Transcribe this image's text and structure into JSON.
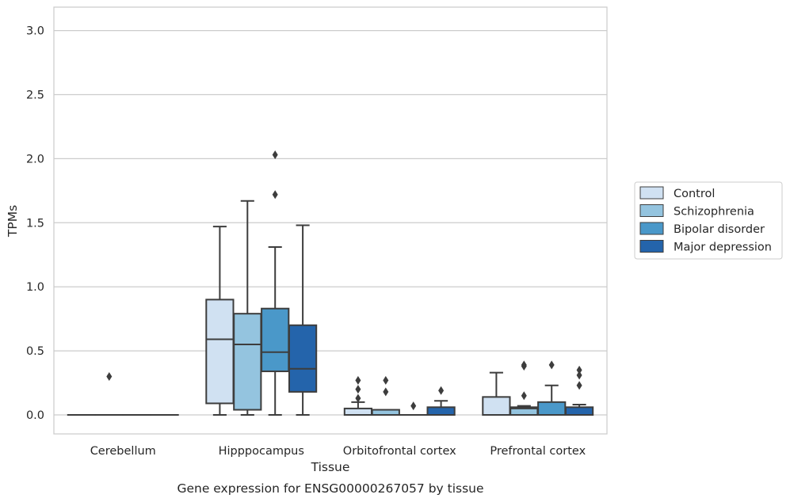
{
  "chart_data": {
    "type": "box",
    "caption": "Gene expression for ENSG00000267057 by tissue",
    "xlabel": "Tissue",
    "ylabel": "TPMs",
    "ylim": [
      -0.15,
      3.2
    ],
    "yticks": [
      0.0,
      0.5,
      1.0,
      1.5,
      2.0,
      2.5,
      3.0
    ],
    "ytick_labels": [
      "0.0",
      "0.5",
      "1.0",
      "1.5",
      "2.0",
      "2.5",
      "3.0"
    ],
    "grid": true,
    "legend_position": "right",
    "categories": [
      "Cerebellum",
      "Hipppocampus",
      "Orbitofrontal cortex",
      "Prefrontal cortex"
    ],
    "series": [
      {
        "name": "Control",
        "color": "#d0e1f2",
        "boxes": [
          {
            "category": "Cerebellum",
            "whisker_low": 0.0,
            "q1": 0.0,
            "median": 0.0,
            "q3": 0.0,
            "whisker_high": 0.0,
            "outliers": []
          },
          {
            "category": "Hipppocampus",
            "whisker_low": 0.0,
            "q1": 0.09,
            "median": 0.59,
            "q3": 0.9,
            "whisker_high": 1.47,
            "outliers": []
          },
          {
            "category": "Orbitofrontal cortex",
            "whisker_low": 0.0,
            "q1": 0.0,
            "median": 0.0,
            "q3": 0.05,
            "whisker_high": 0.1,
            "outliers": [
              0.13,
              0.2,
              0.27
            ]
          },
          {
            "category": "Prefrontal cortex",
            "whisker_low": 0.0,
            "q1": 0.0,
            "median": 0.0,
            "q3": 0.14,
            "whisker_high": 0.33,
            "outliers": []
          }
        ]
      },
      {
        "name": "Schizophrenia",
        "color": "#94c4df",
        "boxes": [
          {
            "category": "Cerebellum",
            "whisker_low": 0.0,
            "q1": 0.0,
            "median": 0.0,
            "q3": 0.0,
            "whisker_high": 0.0,
            "outliers": [
              0.3
            ]
          },
          {
            "category": "Hipppocampus",
            "whisker_low": 0.0,
            "q1": 0.04,
            "median": 0.55,
            "q3": 0.79,
            "whisker_high": 1.67,
            "outliers": []
          },
          {
            "category": "Orbitofrontal cortex",
            "whisker_low": 0.0,
            "q1": 0.0,
            "median": 0.0,
            "q3": 0.04,
            "whisker_high": 0.04,
            "outliers": [
              0.18,
              0.27
            ]
          },
          {
            "category": "Prefrontal cortex",
            "whisker_low": 0.0,
            "q1": 0.0,
            "median": 0.05,
            "q3": 0.06,
            "whisker_high": 0.07,
            "outliers": [
              0.15,
              0.38,
              0.39
            ]
          }
        ]
      },
      {
        "name": "Bipolar disorder",
        "color": "#4a98c9",
        "boxes": [
          {
            "category": "Cerebellum",
            "whisker_low": 0.0,
            "q1": 0.0,
            "median": 0.0,
            "q3": 0.0,
            "whisker_high": 0.0,
            "outliers": []
          },
          {
            "category": "Hipppocampus",
            "whisker_low": 0.0,
            "q1": 0.34,
            "median": 0.49,
            "q3": 0.83,
            "whisker_high": 1.31,
            "outliers": [
              1.72,
              2.03
            ]
          },
          {
            "category": "Orbitofrontal cortex",
            "whisker_low": 0.0,
            "q1": 0.0,
            "median": 0.0,
            "q3": 0.0,
            "whisker_high": 0.0,
            "outliers": [
              0.07
            ]
          },
          {
            "category": "Prefrontal cortex",
            "whisker_low": 0.0,
            "q1": 0.0,
            "median": 0.0,
            "q3": 0.1,
            "whisker_high": 0.23,
            "outliers": [
              0.39
            ]
          }
        ]
      },
      {
        "name": "Major depression",
        "color": "#2464ab",
        "boxes": [
          {
            "category": "Cerebellum",
            "whisker_low": 0.0,
            "q1": 0.0,
            "median": 0.0,
            "q3": 0.0,
            "whisker_high": 0.0,
            "outliers": []
          },
          {
            "category": "Hipppocampus",
            "whisker_low": 0.0,
            "q1": 0.18,
            "median": 0.36,
            "q3": 0.7,
            "whisker_high": 1.48,
            "outliers": []
          },
          {
            "category": "Orbitofrontal cortex",
            "whisker_low": 0.0,
            "q1": 0.0,
            "median": 0.0,
            "q3": 0.06,
            "whisker_high": 0.11,
            "outliers": [
              0.19
            ]
          },
          {
            "category": "Prefrontal cortex",
            "whisker_low": 0.0,
            "q1": 0.0,
            "median": 0.0,
            "q3": 0.06,
            "whisker_high": 0.08,
            "outliers": [
              0.23,
              0.31,
              0.35
            ]
          }
        ]
      }
    ]
  }
}
